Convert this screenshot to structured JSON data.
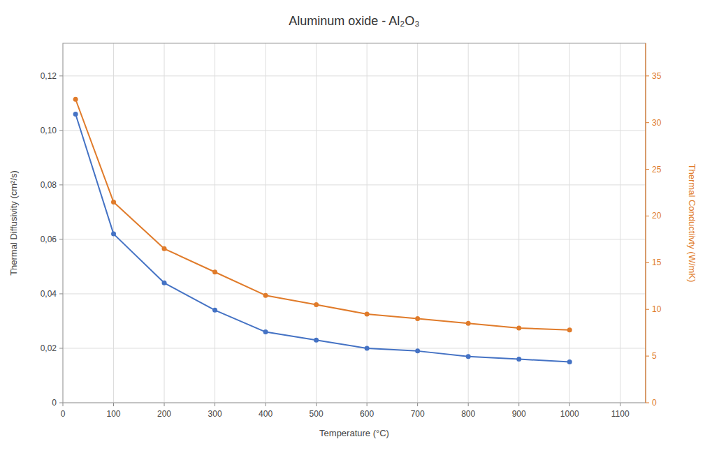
{
  "chart_data": {
    "type": "line",
    "title": "Aluminum oxide - Al₂O₃",
    "xlabel": "Temperature (°C)",
    "ylabel": "Thermal Diffusivity (cm²/s)",
    "y2label": "Thermal Conductiivty (W/mK)",
    "x": [
      25,
      100,
      200,
      300,
      400,
      500,
      600,
      700,
      800,
      900,
      1000
    ],
    "series": [
      {
        "color": "#4472C4",
        "marker": "circle",
        "values": [
          0.106,
          0.062,
          0.044,
          0.034,
          0.026,
          0.023,
          0.02,
          0.019,
          0.017,
          0.016,
          0.015
        ]
      },
      {
        "color": "#E07B2A",
        "marker": "circle",
        "axis": "y2",
        "values": [
          32.5,
          21.5,
          16.5,
          14.0,
          11.5,
          10.5,
          9.5,
          9.0,
          8.5,
          8.0,
          7.8
        ]
      }
    ],
    "xlim": [
      0,
      1150
    ],
    "xticks": [
      0,
      100,
      200,
      300,
      400,
      500,
      600,
      700,
      800,
      900,
      1000,
      1100
    ],
    "ylim": [
      0,
      0.132
    ],
    "yticks": [
      0,
      {
        "value": 0.02,
        "label": "0,02"
      },
      {
        "value": 0.04,
        "label": "0,04"
      },
      {
        "value": 0.06,
        "label": "0,06"
      },
      {
        "value": 0.08,
        "label": "0,08"
      },
      {
        "value": 0.1,
        "label": "0,10"
      },
      {
        "value": 0.12,
        "label": "0,12"
      }
    ],
    "y2lim": [
      0,
      38.5
    ],
    "y2ticks": [
      0,
      5,
      10,
      15,
      20,
      25,
      30,
      35
    ],
    "grid": true
  }
}
